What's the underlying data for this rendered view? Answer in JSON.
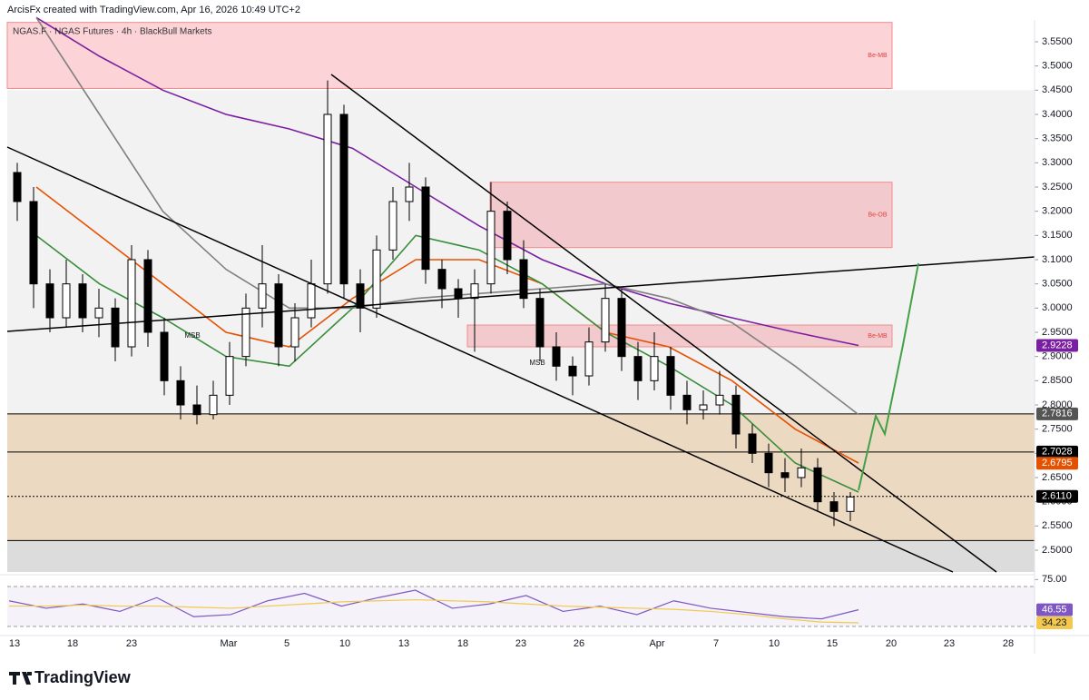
{
  "chart_data": {
    "type": "candlestick",
    "header": "ArcisFx created with TradingView.com, Apr 16, 2026 10:49 UTC+2",
    "title": "NGAS.F · NGAS Futures · 4h · BlackBull Markets",
    "brand": "TradingView",
    "up_color": "#ffffff",
    "down_color": "#000000",
    "ylim": [
      2.455,
      3.595
    ],
    "yticks": [
      {
        "value": 2.5,
        "label": "2.5000"
      },
      {
        "value": 2.55,
        "label": "2.5500"
      },
      {
        "value": 2.6,
        "label": "2.6000"
      },
      {
        "value": 2.65,
        "label": "2.6500"
      },
      {
        "value": 2.7,
        "label": "2.7000"
      },
      {
        "value": 2.75,
        "label": "2.7500"
      },
      {
        "value": 2.8,
        "label": "2.8000"
      },
      {
        "value": 2.85,
        "label": "2.8500"
      },
      {
        "value": 2.9,
        "label": "2.9000"
      },
      {
        "value": 2.95,
        "label": "2.9500"
      },
      {
        "value": 3,
        "label": "3.0000"
      },
      {
        "value": 3.05,
        "label": "3.0500"
      },
      {
        "value": 3.1,
        "label": "3.1000"
      },
      {
        "value": 3.15,
        "label": "3.1500"
      },
      {
        "value": 3.2,
        "label": "3.2000"
      },
      {
        "value": 3.25,
        "label": "3.2500"
      },
      {
        "value": 3.3,
        "label": "3.3000"
      },
      {
        "value": 3.35,
        "label": "3.3500"
      },
      {
        "value": 3.4,
        "label": "3.4000"
      },
      {
        "value": 3.45,
        "label": "3.4500"
      },
      {
        "value": 3.5,
        "label": "3.5000"
      },
      {
        "value": 3.55,
        "label": "3.5500"
      }
    ],
    "xticks": [
      "13",
      "18",
      "23",
      "Mar",
      "5",
      "10",
      "13",
      "18",
      "23",
      "26",
      "Apr",
      "7",
      "10",
      "15",
      "20",
      "23",
      "28"
    ],
    "candles": [
      [
        3.28,
        3.3,
        3.18,
        3.22
      ],
      [
        3.22,
        3.25,
        3.0,
        3.05
      ],
      [
        3.05,
        3.08,
        2.95,
        2.98
      ],
      [
        2.98,
        3.1,
        2.96,
        3.05
      ],
      [
        3.05,
        3.07,
        2.95,
        2.98
      ],
      [
        2.98,
        3.04,
        2.94,
        3.0
      ],
      [
        3.0,
        3.02,
        2.89,
        2.92
      ],
      [
        2.92,
        3.13,
        2.9,
        3.1
      ],
      [
        3.1,
        3.12,
        2.92,
        2.95
      ],
      [
        2.95,
        2.98,
        2.82,
        2.85
      ],
      [
        2.85,
        2.88,
        2.77,
        2.8
      ],
      [
        2.8,
        2.84,
        2.76,
        2.78
      ],
      [
        2.78,
        2.85,
        2.77,
        2.82
      ],
      [
        2.82,
        2.93,
        2.8,
        2.9
      ],
      [
        2.9,
        3.03,
        2.88,
        3.0
      ],
      [
        3.0,
        3.13,
        2.96,
        3.05
      ],
      [
        3.05,
        3.07,
        2.88,
        2.92
      ],
      [
        2.92,
        3.01,
        2.89,
        2.98
      ],
      [
        2.98,
        3.1,
        2.96,
        3.05
      ],
      [
        3.05,
        3.47,
        3.03,
        3.4
      ],
      [
        3.4,
        3.42,
        3.02,
        3.05
      ],
      [
        3.05,
        3.08,
        2.95,
        3.0
      ],
      [
        3.0,
        3.15,
        2.98,
        3.12
      ],
      [
        3.12,
        3.25,
        3.1,
        3.22
      ],
      [
        3.22,
        3.3,
        3.18,
        3.25
      ],
      [
        3.25,
        3.27,
        3.05,
        3.08
      ],
      [
        3.08,
        3.1,
        3.0,
        3.04
      ],
      [
        3.04,
        3.06,
        2.98,
        3.02
      ],
      [
        3.02,
        3.08,
        2.91,
        3.05
      ],
      [
        3.05,
        3.26,
        3.03,
        3.2
      ],
      [
        3.2,
        3.22,
        3.07,
        3.1
      ],
      [
        3.1,
        3.14,
        3.0,
        3.02
      ],
      [
        3.02,
        3.04,
        2.89,
        2.92
      ],
      [
        2.92,
        2.95,
        2.85,
        2.88
      ],
      [
        2.88,
        2.9,
        2.82,
        2.86
      ],
      [
        2.86,
        2.96,
        2.84,
        2.93
      ],
      [
        2.93,
        3.05,
        2.91,
        3.02
      ],
      [
        3.02,
        3.04,
        2.87,
        2.9
      ],
      [
        2.9,
        2.93,
        2.81,
        2.85
      ],
      [
        2.85,
        2.95,
        2.83,
        2.9
      ],
      [
        2.9,
        2.92,
        2.79,
        2.82
      ],
      [
        2.82,
        2.85,
        2.76,
        2.79
      ],
      [
        2.79,
        2.83,
        2.77,
        2.8
      ],
      [
        2.8,
        2.87,
        2.78,
        2.82
      ],
      [
        2.82,
        2.84,
        2.71,
        2.74
      ],
      [
        2.74,
        2.76,
        2.68,
        2.7
      ],
      [
        2.7,
        2.72,
        2.63,
        2.66
      ],
      [
        2.66,
        2.69,
        2.62,
        2.65
      ],
      [
        2.65,
        2.71,
        2.63,
        2.67
      ],
      [
        2.67,
        2.69,
        2.58,
        2.6
      ],
      [
        2.6,
        2.62,
        2.55,
        2.58
      ],
      [
        2.58,
        2.62,
        2.56,
        2.61
      ]
    ],
    "series": [
      {
        "color": "#7b1fa2",
        "values": [
          3.6,
          3.52,
          3.45,
          3.4,
          3.37,
          3.33,
          3.25,
          3.17,
          3.1,
          3.05,
          3.01,
          2.98,
          2.95,
          2.9228
        ]
      },
      {
        "color": "#808080",
        "values": [
          3.6,
          3.4,
          3.2,
          3.08,
          3.0,
          3.0,
          3.02,
          3.03,
          3.04,
          3.05,
          3.02,
          2.97,
          2.88,
          2.78
        ]
      },
      {
        "color": "#e65100",
        "values": [
          3.25,
          3.15,
          3.05,
          2.95,
          2.92,
          3.02,
          3.1,
          3.1,
          3.05,
          2.95,
          2.92,
          2.85,
          2.75,
          2.68
        ]
      },
      {
        "color": "#388e3c",
        "values": [
          3.15,
          3.05,
          2.98,
          2.9,
          2.88,
          3.0,
          3.15,
          3.12,
          3.05,
          2.95,
          2.88,
          2.8,
          2.68,
          2.62
        ]
      }
    ],
    "zones": [
      {
        "label": "Be-MB",
        "top": 3.59,
        "bottom": 3.4535
      },
      {
        "label": "Be-OB",
        "top": 3.26,
        "bottom": 3.125
      },
      {
        "label": "Be-MB",
        "top": 2.965,
        "bottom": 2.92
      }
    ],
    "annotations": [
      "MSB",
      "MSB"
    ],
    "levels": [
      2.7816,
      2.7028,
      2.611,
      2.52
    ],
    "price_labels": [
      {
        "value": 2.9228,
        "label": "2.9228",
        "color": "#7b1fa2"
      },
      {
        "value": 2.7816,
        "label": "2.7816",
        "color": "#555555"
      },
      {
        "value": 2.7028,
        "label": "2.7028",
        "color": "#000000"
      },
      {
        "value": 2.6795,
        "label": "2.6795",
        "color": "#e65100"
      },
      {
        "value": 2.611,
        "label": "2.6110",
        "color": "#000000"
      }
    ],
    "rsi": {
      "ylim": [
        24,
        77
      ],
      "yticks": [
        {
          "value": 75,
          "label": "75.00"
        }
      ],
      "series": [
        {
          "color": "#7e57c2",
          "values": [
            55,
            48,
            52,
            45,
            58,
            40,
            42,
            55,
            62,
            50,
            58,
            65,
            48,
            52,
            60,
            45,
            50,
            42,
            55,
            48,
            44,
            40,
            38,
            46.55
          ],
          "label": "46.55"
        },
        {
          "color": "#f2c94c",
          "values": [
            50,
            50,
            51,
            50,
            50,
            49,
            48,
            50,
            52,
            54,
            55,
            56,
            55,
            54,
            52,
            50,
            49,
            48,
            47,
            45,
            42,
            38,
            35,
            34.23
          ],
          "label": "34.23"
        }
      ]
    }
  }
}
